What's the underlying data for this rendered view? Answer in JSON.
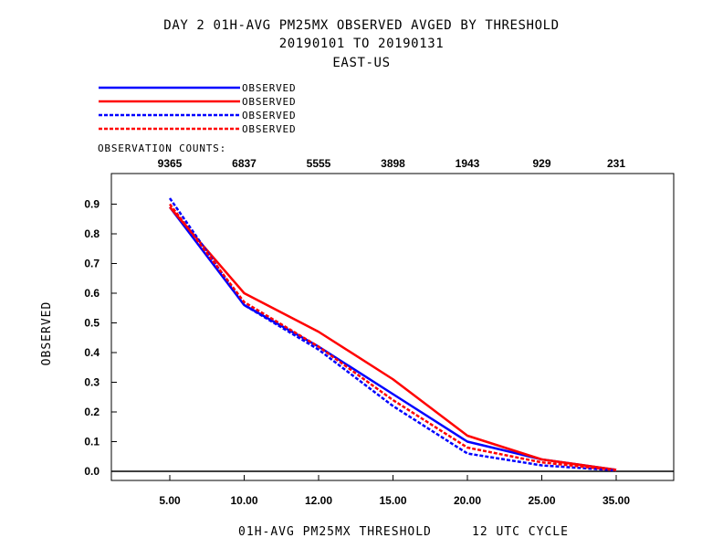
{
  "chart_data": {
    "type": "line",
    "title_lines": [
      "DAY 2   01H-AVG PM25MX OBSERVED   AVGED BY THRESHOLD",
      "20190101 TO 20190131",
      "EAST-US"
    ],
    "xlabel": "01H-AVG PM25MX THRESHOLD     12 UTC CYCLE",
    "ylabel": "OBSERVED",
    "counts_label": "OBSERVATION COUNTS:",
    "counts": [
      "9365",
      "6837",
      "5555",
      "3898",
      "1943",
      "929",
      "231"
    ],
    "categories": [
      "5.00",
      "10.00",
      "12.00",
      "15.00",
      "20.00",
      "25.00",
      "35.00"
    ],
    "yticks": [
      "0.0",
      "0.1",
      "0.2",
      "0.3",
      "0.4",
      "0.5",
      "0.6",
      "0.7",
      "0.8",
      "0.9"
    ],
    "ylim": [
      0,
      1.0
    ],
    "grid": false,
    "legend_position": "top-left",
    "series": [
      {
        "name": "OBSERVED",
        "color": "#0000ff",
        "dash": "solid",
        "values": [
          0.89,
          0.56,
          0.42,
          0.26,
          0.1,
          0.04,
          0.005
        ]
      },
      {
        "name": "OBSERVED",
        "color": "#ff0000",
        "dash": "solid",
        "values": [
          0.89,
          0.6,
          0.47,
          0.31,
          0.12,
          0.04,
          0.005
        ]
      },
      {
        "name": "OBSERVED",
        "color": "#0000ff",
        "dash": "dashed",
        "values": [
          0.92,
          0.56,
          0.41,
          0.22,
          0.06,
          0.02,
          0.003
        ]
      },
      {
        "name": "OBSERVED",
        "color": "#ff0000",
        "dash": "dashed",
        "values": [
          0.9,
          0.57,
          0.42,
          0.24,
          0.08,
          0.03,
          0.004
        ]
      }
    ]
  }
}
